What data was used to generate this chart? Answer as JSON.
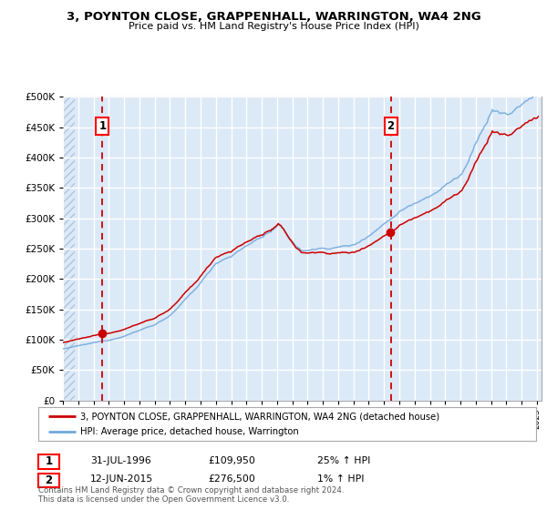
{
  "title": "3, POYNTON CLOSE, GRAPPENHALL, WARRINGTON, WA4 2NG",
  "subtitle": "Price paid vs. HM Land Registry's House Price Index (HPI)",
  "legend_line1": "3, POYNTON CLOSE, GRAPPENHALL, WARRINGTON, WA4 2NG (detached house)",
  "legend_line2": "HPI: Average price, detached house, Warrington",
  "footer": "Contains HM Land Registry data © Crown copyright and database right 2024.\nThis data is licensed under the Open Government Licence v3.0.",
  "sale1_label": "1",
  "sale2_label": "2",
  "sale1_date": "31-JUL-1996",
  "sale1_price": "£109,950",
  "sale1_hpi": "25% ↑ HPI",
  "sale2_date": "12-JUN-2015",
  "sale2_price": "£276,500",
  "sale2_hpi": "1% ↑ HPI",
  "sale1_year": 1996.58,
  "sale2_year": 2015.44,
  "ylim": [
    0,
    500000
  ],
  "yticks": [
    0,
    50000,
    100000,
    150000,
    200000,
    250000,
    300000,
    350000,
    400000,
    450000,
    500000
  ],
  "xlim_start": 1994.0,
  "xlim_end": 2025.3,
  "plot_bg_color": "#dce9f7",
  "grid_color": "#ffffff",
  "red_line_color": "#cc0000",
  "blue_line_color": "#6fa8dc",
  "dashed_line_color": "#cc0000",
  "hatch_region_end": 1994.8
}
